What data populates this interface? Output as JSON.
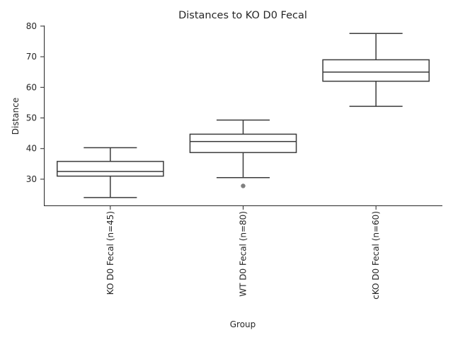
{
  "chart_data": {
    "type": "box",
    "title": "Distances to KO D0 Fecal",
    "xlabel": "Group",
    "ylabel": "Distance",
    "categories": [
      "KO D0 Fecal (n=45)",
      "WT D0 Fecal (n=80)",
      "cKO D0 Fecal (n=60)"
    ],
    "boxes": [
      {
        "whislo": 24.0,
        "q1": 31.0,
        "med": 32.5,
        "q3": 35.8,
        "whishi": 40.3,
        "fliers": []
      },
      {
        "whislo": 30.5,
        "q1": 38.7,
        "med": 42.3,
        "q3": 44.7,
        "whishi": 49.3,
        "fliers": [
          27.8
        ]
      },
      {
        "whislo": 53.8,
        "q1": 62.0,
        "med": 65.0,
        "q3": 69.0,
        "whishi": 77.6,
        "fliers": []
      }
    ],
    "ylim": [
      21.2,
      80.2
    ],
    "yticks": [
      30,
      40,
      50,
      60,
      70,
      80
    ],
    "grid": false,
    "colors": {
      "box_line": "#3b3b3b",
      "box_fill": "#ffffff",
      "flier": "#808080",
      "text": "#262626"
    }
  }
}
